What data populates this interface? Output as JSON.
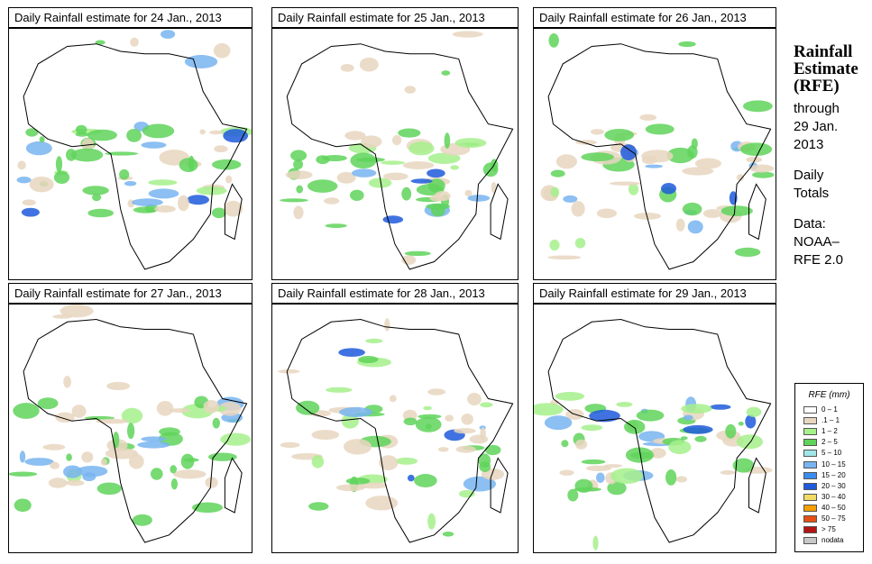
{
  "panels": [
    {
      "title": "Daily Rainfall estimate for  24 Jan., 2013"
    },
    {
      "title": "Daily Rainfall estimate for  25 Jan., 2013"
    },
    {
      "title": "Daily Rainfall estimate for  26 Jan., 2013"
    },
    {
      "title": "Daily Rainfall estimate for  27 Jan., 2013"
    },
    {
      "title": "Daily Rainfall estimate for  28 Jan., 2013"
    },
    {
      "title": "Daily Rainfall estimate for  29 Jan., 2013"
    }
  ],
  "side": {
    "line1": "Rainfall",
    "line2": "Estimate",
    "line3": "(RFE)",
    "through": "through",
    "date1": "29 Jan.",
    "date2": "2013",
    "daily": "Daily",
    "totals": "Totals",
    "data_label": "Data:",
    "source1": "NOAA–",
    "source2": "RFE 2.0"
  },
  "legend": {
    "title": "RFE (mm)",
    "items": [
      {
        "label": "0 – 1",
        "color": "#ffffff"
      },
      {
        "label": ".1 – 1",
        "color": "#e8d6c0"
      },
      {
        "label": "1 – 2",
        "color": "#a6f08c"
      },
      {
        "label": "2 – 5",
        "color": "#5fd45a"
      },
      {
        "label": "5 – 10",
        "color": "#a0e6e6"
      },
      {
        "label": "10 – 15",
        "color": "#78b4f0"
      },
      {
        "label": "15 – 20",
        "color": "#3c8cf0"
      },
      {
        "label": "20 – 30",
        "color": "#1e5adc"
      },
      {
        "label": "30 – 40",
        "color": "#f0dc64"
      },
      {
        "label": "40 – 50",
        "color": "#f5a000"
      },
      {
        "label": "50 – 75",
        "color": "#e65014"
      },
      {
        "label": "> 75",
        "color": "#b41414"
      },
      {
        "label": "nodata",
        "color": "#c8c8c8"
      }
    ]
  }
}
